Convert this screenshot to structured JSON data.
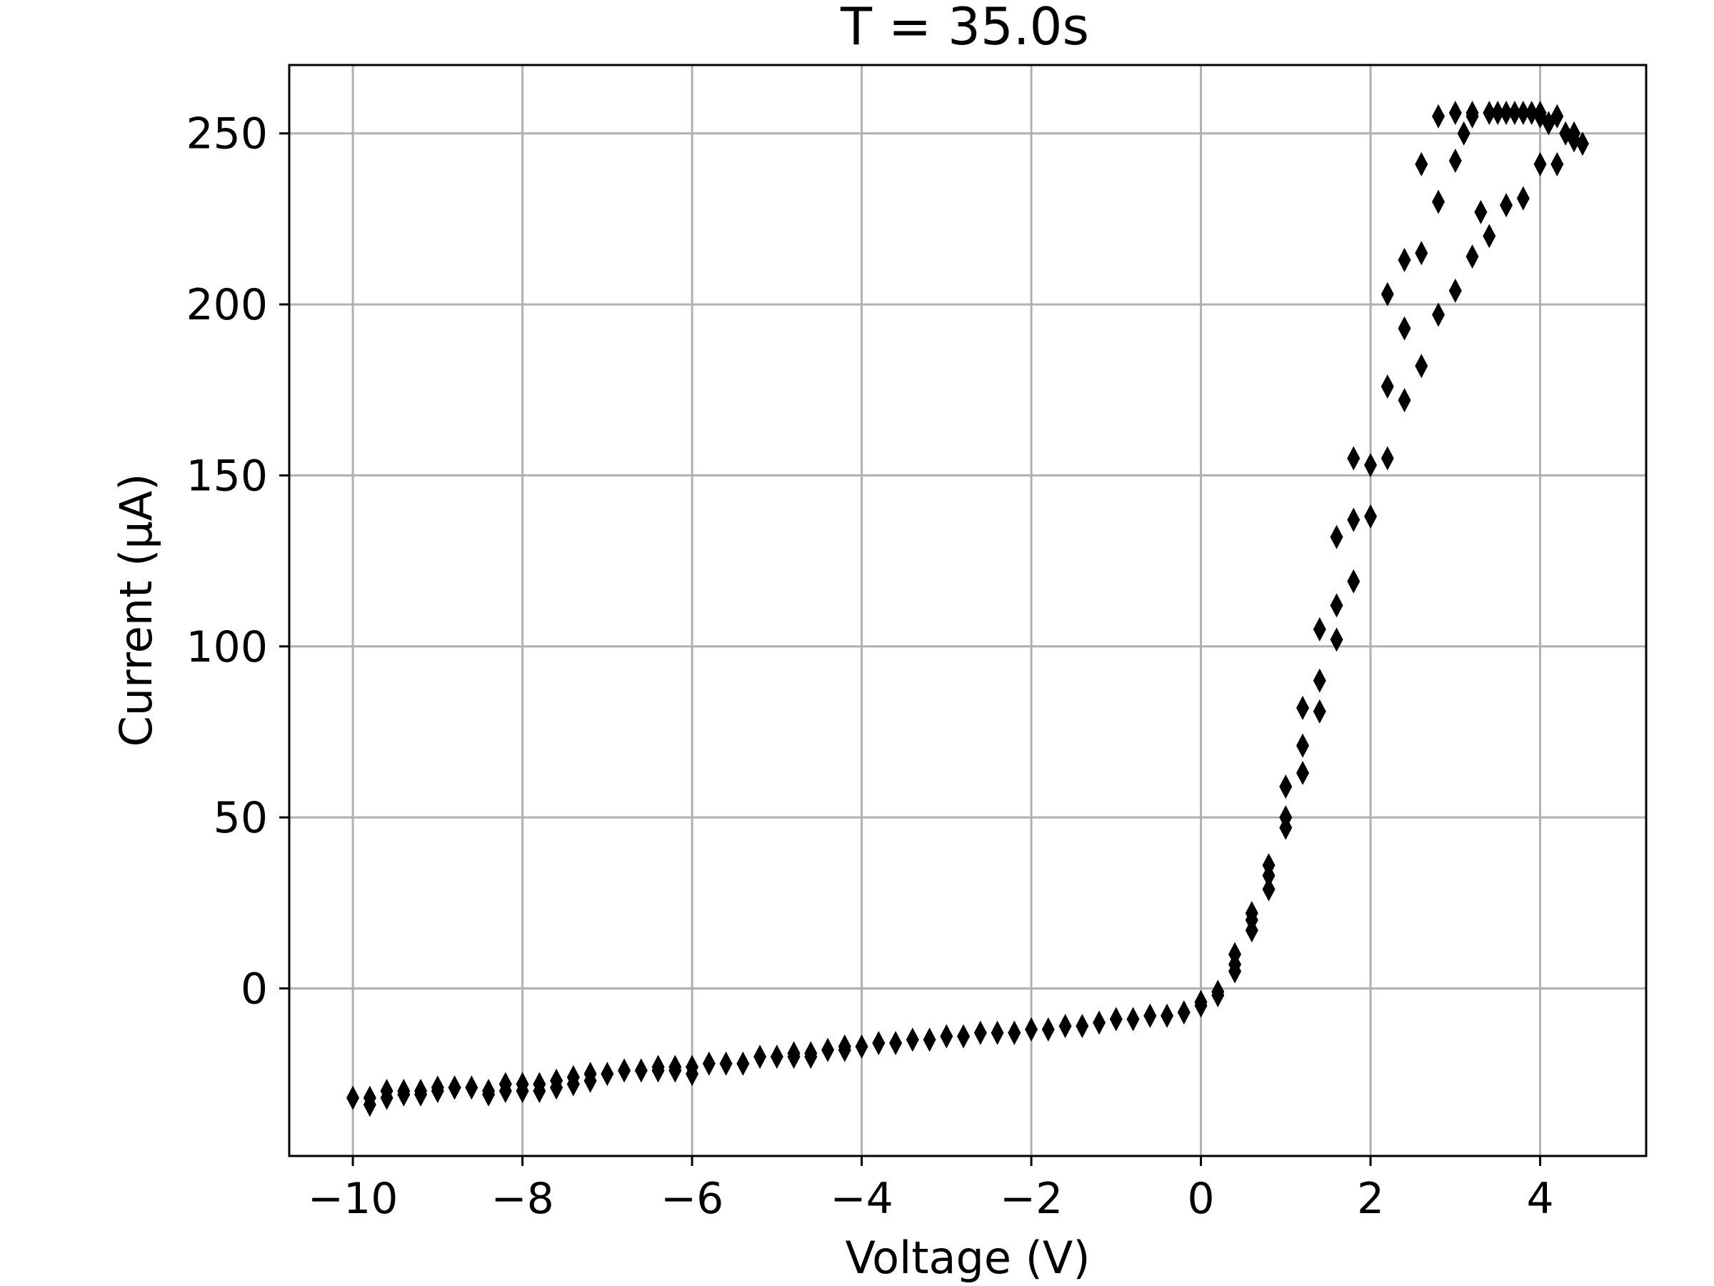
{
  "chart_data": {
    "type": "scatter",
    "title": "T = 35.0s",
    "xlabel": "Voltage (V)",
    "ylabel": "Current (μA)",
    "xlim": [
      -10.75,
      5.25
    ],
    "ylim": [
      -49,
      270
    ],
    "xticks": [
      -10,
      -8,
      -6,
      -4,
      -2,
      0,
      2,
      4
    ],
    "xtick_labels": [
      "−10",
      "−8",
      "−6",
      "−4",
      "−2",
      "0",
      "2",
      "4"
    ],
    "yticks": [
      0,
      50,
      100,
      150,
      200,
      250
    ],
    "ytick_labels": [
      "0",
      "50",
      "100",
      "150",
      "200",
      "250"
    ],
    "grid": true,
    "marker": "thin-diamond",
    "marker_color": "#000000",
    "series": [
      {
        "x": [
          -10.0,
          -9.8,
          -9.6,
          -9.4,
          -9.2,
          -9.0,
          -8.8,
          -8.6,
          -8.4,
          -8.2,
          -8.0,
          -7.8,
          -7.6,
          -7.4,
          -7.2,
          -7.0,
          -6.8,
          -6.6,
          -6.4,
          -6.2,
          -6.0,
          -5.8,
          -5.6,
          -5.4,
          -5.2,
          -5.0,
          -4.8,
          -4.6,
          -4.4,
          -4.2,
          -4.0,
          -3.8,
          -3.6,
          -3.4,
          -3.2,
          -3.0,
          -2.8,
          -2.6,
          -2.4,
          -2.2,
          -2.0,
          -1.8,
          -1.6,
          -1.4,
          -1.2,
          -1.0,
          -0.8,
          -0.6,
          -0.4,
          -0.2,
          0.0,
          0.2,
          0.4,
          0.6,
          0.8,
          1.0,
          1.2,
          1.4,
          1.6,
          1.8,
          2.0,
          2.2,
          2.4,
          2.6,
          2.8,
          3.0,
          3.2,
          3.4,
          3.6,
          3.8,
          4.0,
          4.2,
          4.4,
          4.5,
          -9.8,
          -9.6,
          -9.4,
          -9.2,
          -9.0,
          -8.8,
          -8.4,
          -8.2,
          -8.0,
          -7.8,
          -7.6,
          -7.4,
          -7.2,
          -6.4,
          -6.2,
          -6.0,
          -4.8,
          -4.6,
          -4.2,
          -2.2,
          -0.6,
          0.0,
          0.2,
          0.4,
          0.6,
          0.8,
          1.0,
          1.2,
          1.4,
          1.6,
          1.8,
          2.0,
          2.2,
          2.4,
          2.6,
          2.8,
          3.0,
          3.2,
          3.4,
          3.6,
          3.8,
          4.0,
          4.2,
          0.4,
          0.6,
          0.8,
          1.0,
          1.2,
          1.4,
          1.6,
          1.8,
          2.2,
          2.4,
          2.6,
          2.8,
          3.0,
          3.1,
          3.2,
          3.3,
          3.5,
          3.7,
          3.9,
          4.0,
          4.1,
          4.3,
          4.4
        ],
        "y": [
          -32,
          -34,
          -32,
          -31,
          -31,
          -30,
          -29,
          -29,
          -30,
          -28,
          -28,
          -28,
          -27,
          -26,
          -25,
          -25,
          -24,
          -24,
          -23,
          -23,
          -23,
          -22,
          -22,
          -22,
          -20,
          -20,
          -19,
          -19,
          -18,
          -17,
          -17,
          -16,
          -16,
          -15,
          -15,
          -14,
          -14,
          -13,
          -13,
          -13,
          -12,
          -12,
          -11,
          -11,
          -10,
          -9,
          -9,
          -8,
          -8,
          -7,
          -4,
          -1,
          7,
          17,
          33,
          50,
          71,
          90,
          112,
          137,
          153,
          176,
          193,
          215,
          255,
          256,
          256,
          256,
          256,
          256,
          256,
          255,
          250,
          247,
          -32,
          -30,
          -30,
          -30,
          -29,
          -29,
          -31,
          -30,
          -30,
          -30,
          -29,
          -28,
          -27,
          -24,
          -24,
          -25,
          -20,
          -20,
          -18,
          -13,
          -8,
          -5,
          -2,
          10,
          22,
          29,
          47,
          63,
          81,
          102,
          119,
          138,
          155,
          172,
          182,
          197,
          204,
          214,
          220,
          229,
          231,
          241,
          241,
          5,
          20,
          36,
          59,
          82,
          105,
          132,
          155,
          203,
          213,
          241,
          230,
          242,
          250,
          255,
          227,
          256,
          256,
          256,
          255,
          253,
          250,
          248
        ]
      }
    ]
  }
}
